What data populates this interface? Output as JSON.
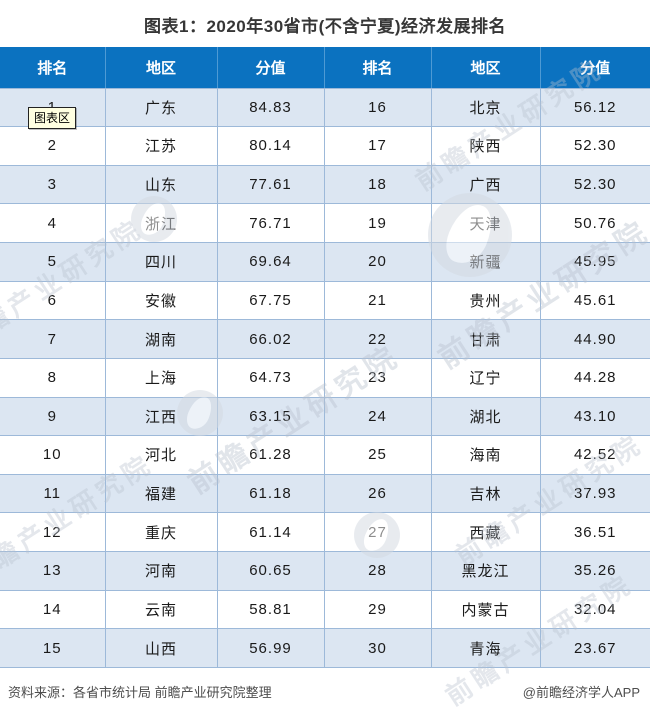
{
  "page": {
    "title": "图表1：2020年30省市(不含宁夏)经济发展排名",
    "tooltip_label": "图表区",
    "watermark_text": "前瞻产业研究院",
    "footer": {
      "source": "资料来源：各省市统计局 前瞻产业研究院整理",
      "credit": "@前瞻经济学人APP"
    }
  },
  "chart_data": {
    "type": "table",
    "title": "图表1：2020年30省市(不含宁夏)经济发展排名",
    "columns": [
      "排名",
      "地区",
      "分值",
      "排名",
      "地区",
      "分值"
    ],
    "rows": [
      [
        "1",
        "广东",
        "84.83",
        "16",
        "北京",
        "56.12"
      ],
      [
        "2",
        "江苏",
        "80.14",
        "17",
        "陕西",
        "52.30"
      ],
      [
        "3",
        "山东",
        "77.61",
        "18",
        "广西",
        "52.30"
      ],
      [
        "4",
        "浙江",
        "76.71",
        "19",
        "天津",
        "50.76"
      ],
      [
        "5",
        "四川",
        "69.64",
        "20",
        "新疆",
        "45.95"
      ],
      [
        "6",
        "安徽",
        "67.75",
        "21",
        "贵州",
        "45.61"
      ],
      [
        "7",
        "湖南",
        "66.02",
        "22",
        "甘肃",
        "44.90"
      ],
      [
        "8",
        "上海",
        "64.73",
        "23",
        "辽宁",
        "44.28"
      ],
      [
        "9",
        "江西",
        "63.15",
        "24",
        "湖北",
        "43.10"
      ],
      [
        "10",
        "河北",
        "61.28",
        "25",
        "海南",
        "42.52"
      ],
      [
        "11",
        "福建",
        "61.18",
        "26",
        "吉林",
        "37.93"
      ],
      [
        "12",
        "重庆",
        "61.14",
        "27",
        "西藏",
        "36.51"
      ],
      [
        "13",
        "河南",
        "60.65",
        "28",
        "黑龙江",
        "35.26"
      ],
      [
        "14",
        "云南",
        "58.81",
        "29",
        "内蒙古",
        "32.04"
      ],
      [
        "15",
        "山西",
        "56.99",
        "30",
        "青海",
        "23.67"
      ]
    ],
    "layout_hints": {
      "striping": "odd body rows shaded",
      "header_repeats": "two side-by-side rank/region/score groups"
    },
    "colors": {
      "header_bg": "#0b72c0",
      "header_divider": "#4e9ad4",
      "row_alt_bg": "#dce6f2",
      "cell_border": "#9db9d9",
      "title_text": "#363636",
      "footer_text": "#4d4d4d",
      "tooltip_bg": "#ffffe1",
      "watermark_color": "#b9c2cf"
    }
  }
}
